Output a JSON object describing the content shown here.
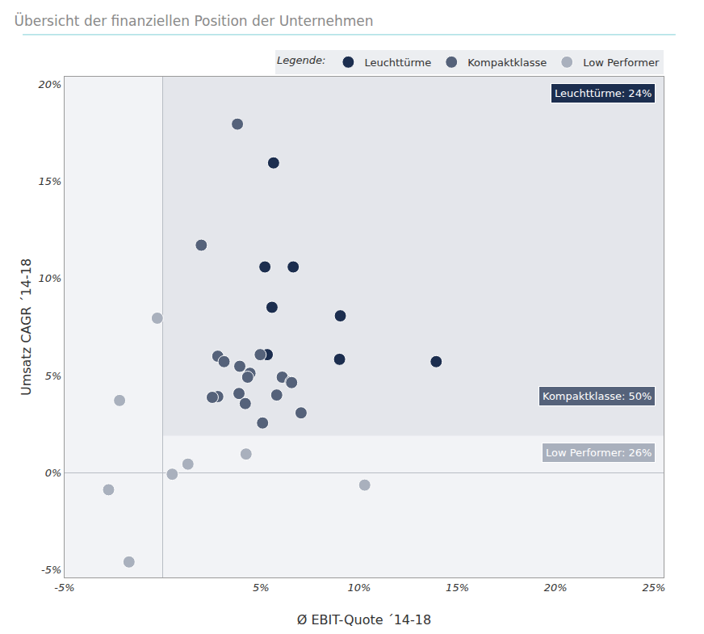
{
  "chart_data": {
    "type": "scatter",
    "title": "Übersicht der finanziellen Position der Unternehmen",
    "x_label": "Ø EBIT-Quote ´14-18",
    "y_label": "Umsatz CAGR ´14-18",
    "legend_title": "Legende:",
    "legend": "top right",
    "grid": false,
    "marker": "circle",
    "xlim": [
      -5,
      25.5
    ],
    "ylim": [
      -5.4,
      20.4
    ],
    "xticks": [
      {
        "value": -5,
        "label": "-5%"
      },
      {
        "value": 5,
        "label": "5%"
      },
      {
        "value": 10,
        "label": "10%"
      },
      {
        "value": 15,
        "label": "15%"
      },
      {
        "value": 20,
        "label": "20%"
      },
      {
        "value": 25,
        "label": "25%"
      }
    ],
    "yticks": [
      {
        "value": -5,
        "label": "-5%"
      },
      {
        "value": 0,
        "label": "0%"
      },
      {
        "value": 5,
        "label": "5%"
      },
      {
        "value": 10,
        "label": "10%"
      },
      {
        "value": 15,
        "label": "15%"
      },
      {
        "value": 20,
        "label": "20%"
      }
    ],
    "regions": [
      {
        "label": "Leuchttürme: 24%",
        "x0": 5,
        "y0": 4.8,
        "color": "#d3d7df"
      },
      {
        "label": "Kompaktklasse: 50%",
        "x0": 0,
        "y0": 1.9,
        "color": "#e4e6eb"
      },
      {
        "label": "Low Performer: 26%",
        "color": "#f2f3f6"
      }
    ],
    "series": [
      {
        "name": "Leuchttürme",
        "color": "#1c2e4f",
        "x": [
          5.64,
          5.2,
          6.64,
          5.56,
          9.04,
          9.0,
          13.92,
          5.32
        ],
        "values": [
          15.96,
          10.6,
          10.6,
          8.52,
          8.08,
          5.84,
          5.72,
          6.08
        ]
      },
      {
        "name": "Kompaktklasse",
        "color": "#55627a",
        "x": [
          3.8,
          1.96,
          4.96,
          2.8,
          3.12,
          3.92,
          4.44,
          4.32,
          6.08,
          6.52,
          6.56,
          3.88,
          2.8,
          2.52,
          5.8,
          4.2,
          7.04,
          5.08
        ],
        "values": [
          17.96,
          11.72,
          6.08,
          6.0,
          5.72,
          5.48,
          5.12,
          4.92,
          4.92,
          4.68,
          4.64,
          4.08,
          3.92,
          3.88,
          4.0,
          3.56,
          3.08,
          2.56
        ]
      },
      {
        "name": "Low Performer",
        "color": "#a9b0bd",
        "x": [
          -0.28,
          -2.2,
          4.24,
          1.28,
          0.48,
          10.28,
          -2.76,
          -1.72
        ],
        "values": [
          7.96,
          3.72,
          0.96,
          0.44,
          -0.08,
          -0.64,
          -0.88,
          -4.6
        ]
      }
    ]
  }
}
